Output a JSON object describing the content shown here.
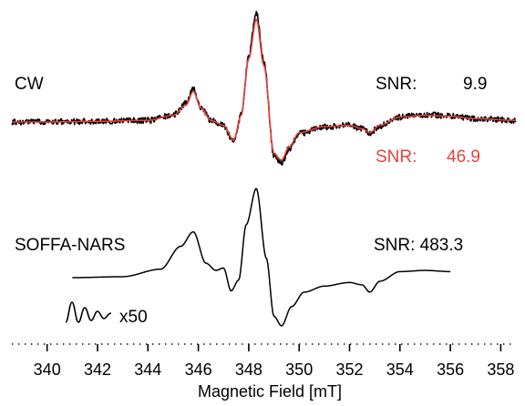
{
  "chart_data": {
    "type": "line",
    "xlabel": "Magnetic Field [mT]",
    "xlim": [
      338.6,
      358.6
    ],
    "x_ticks_labeled": [
      340,
      342,
      344,
      346,
      348,
      350,
      352,
      354,
      356,
      358
    ],
    "x_minor_step": 0.5,
    "grid": false,
    "colors": {
      "noisy": "#000000",
      "fit": "#e8413b",
      "nars": "#000000"
    },
    "labels": {
      "cw": "CW",
      "snr_cw_label": "SNR:",
      "snr_cw_value": "9.9",
      "snr_fit_label": "SNR:",
      "snr_fit_value": "46.9",
      "nars": "SOFFA-NARS",
      "snr_nars": "SNR: 483.3",
      "scale": "x50"
    },
    "series": [
      {
        "name": "CW",
        "color": "#000000",
        "noise": 0.09,
        "x": [
          338.6,
          340,
          342,
          344,
          345.0,
          345.5,
          345.8,
          346.1,
          346.5,
          347.0,
          347.4,
          347.7,
          348.0,
          348.3,
          348.6,
          349.0,
          349.3,
          349.6,
          350.0,
          351.0,
          352.0,
          352.5,
          352.8,
          353.2,
          354.0,
          355.0,
          356.0,
          357.0,
          358.6
        ],
        "y": [
          0.0,
          0.0,
          0.02,
          0.05,
          0.2,
          0.55,
          1.0,
          0.45,
          0.05,
          -0.1,
          -0.6,
          0.2,
          2.0,
          3.3,
          1.8,
          -1.0,
          -1.25,
          -0.8,
          -0.35,
          -0.15,
          -0.1,
          -0.2,
          -0.35,
          -0.12,
          0.15,
          0.22,
          0.18,
          0.1,
          0.05
        ]
      },
      {
        "name": "SNR fit",
        "color": "#e8413b",
        "noise": 0,
        "x": [
          338.6,
          340,
          342,
          344,
          345.0,
          345.5,
          345.8,
          346.1,
          346.5,
          347.0,
          347.4,
          347.7,
          348.0,
          348.3,
          348.6,
          349.0,
          349.3,
          349.6,
          350.0,
          351.0,
          352.0,
          352.5,
          352.8,
          353.2,
          354.0,
          355.0,
          356.0,
          357.0,
          358.6
        ],
        "y": [
          0.0,
          0.0,
          0.02,
          0.05,
          0.2,
          0.5,
          0.92,
          0.42,
          0.05,
          -0.1,
          -0.55,
          0.2,
          1.9,
          3.1,
          1.7,
          -0.95,
          -1.15,
          -0.75,
          -0.32,
          -0.14,
          -0.1,
          -0.2,
          -0.32,
          -0.1,
          0.15,
          0.2,
          0.17,
          0.1,
          0.05
        ]
      },
      {
        "name": "SOFFA-NARS",
        "color": "#000000",
        "noise": 0,
        "x": [
          341.0,
          343.0,
          344.5,
          345.3,
          345.8,
          346.3,
          346.7,
          347.0,
          347.3,
          347.6,
          347.9,
          348.3,
          348.7,
          349.0,
          349.3,
          349.7,
          350.2,
          351.0,
          352.0,
          352.5,
          352.8,
          353.2,
          354.0,
          355.0,
          356.0
        ],
        "y": [
          0.0,
          0.04,
          0.35,
          1.3,
          1.9,
          0.6,
          0.3,
          0.4,
          -0.55,
          -0.1,
          2.2,
          3.7,
          0.8,
          -1.6,
          -2.0,
          -1.2,
          -0.6,
          -0.35,
          -0.2,
          -0.3,
          -0.6,
          -0.15,
          0.25,
          0.3,
          0.25
        ]
      }
    ]
  }
}
